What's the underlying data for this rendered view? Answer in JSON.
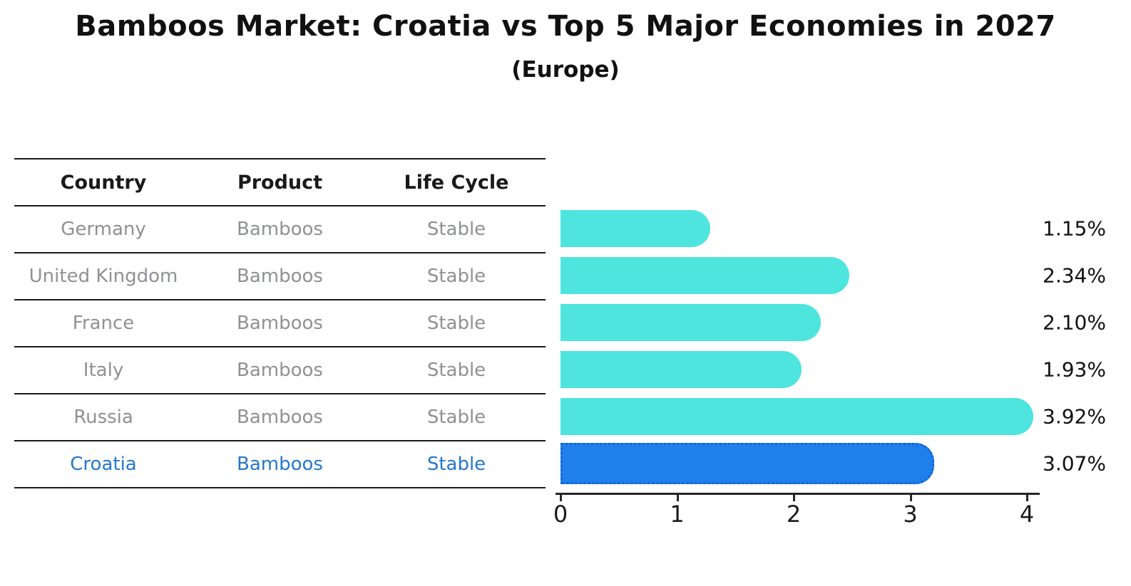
{
  "title": "Bamboos Market: Croatia vs Top 5 Major Economies in 2027",
  "subtitle": "(Europe)",
  "table": {
    "headers": [
      "Country",
      "Product",
      "Life Cycle"
    ],
    "rows": [
      {
        "country": "Germany",
        "product": "Bamboos",
        "life_cycle": "Stable",
        "highlight": false
      },
      {
        "country": "United Kingdom",
        "product": "Bamboos",
        "life_cycle": "Stable",
        "highlight": false
      },
      {
        "country": "France",
        "product": "Bamboos",
        "life_cycle": "Stable",
        "highlight": false
      },
      {
        "country": "Italy",
        "product": "Bamboos",
        "life_cycle": "Stable",
        "highlight": false
      },
      {
        "country": "Russia",
        "product": "Bamboos",
        "life_cycle": "Stable",
        "highlight": false
      },
      {
        "country": "Croatia",
        "product": "Bamboos",
        "life_cycle": "Stable",
        "highlight": true
      }
    ]
  },
  "chart_data": {
    "type": "bar",
    "orientation": "horizontal",
    "categories": [
      "Germany",
      "United Kingdom",
      "France",
      "Italy",
      "Russia",
      "Croatia"
    ],
    "values": [
      1.15,
      2.34,
      2.1,
      1.93,
      3.92,
      3.07
    ],
    "value_labels": [
      "1.15%",
      "2.34%",
      "2.10%",
      "1.93%",
      "3.92%",
      "3.07%"
    ],
    "highlight_category": "Croatia",
    "title": "Bamboos Market: Croatia vs Top 5 Major Economies in 2027",
    "subtitle": "(Europe)",
    "xlabel": "",
    "ylabel": "",
    "xticks": [
      "0",
      "1",
      "2",
      "3",
      "4"
    ],
    "xlim": [
      0,
      4.1
    ],
    "grid": false,
    "legend": false,
    "bar_color": "#4DE5DE",
    "highlight_bar_color": "#1F80EC",
    "highlight_border_color": "#1464D8",
    "highlight_text_color": "#2478CC",
    "muted_text_color": "#8F9193"
  }
}
